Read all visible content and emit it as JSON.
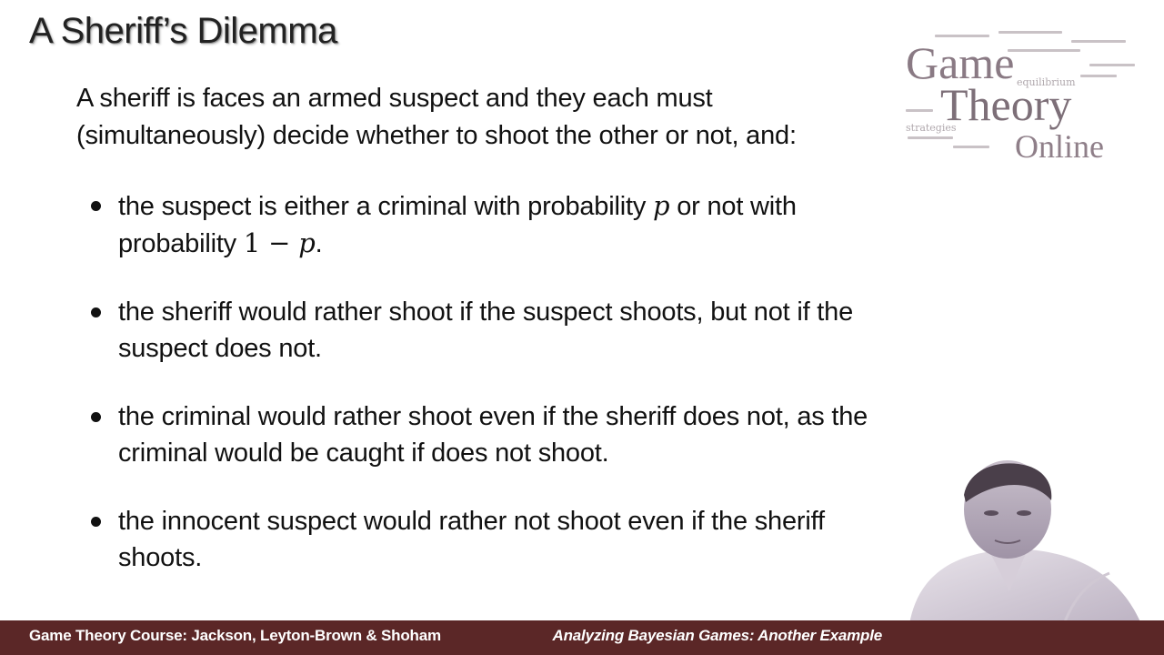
{
  "slide": {
    "title": "A Sheriff’s Dilemma",
    "intro": "A sheriff is faces an armed suspect and they each must (simultaneously) decide whether to shoot the other or not, and:",
    "bullets": [
      {
        "before": "the suspect is either a criminal with probability ",
        "math1": "p",
        "middle": " or not with probability ",
        "math2_one": "1 − ",
        "math2_p": "p",
        "after": "."
      },
      {
        "text": "the sheriff would rather shoot if the suspect shoots, but not if the suspect does not."
      },
      {
        "text": "the criminal would rather shoot even if the sheriff does not, as the criminal would be caught if does not shoot."
      },
      {
        "text": "the innocent suspect would rather not shoot even if the sheriff shoots."
      }
    ]
  },
  "logo": {
    "line1": "Game",
    "line2": "Theory",
    "line3": "Online",
    "cloud_words": [
      "equilibrium",
      "strategies"
    ]
  },
  "footer": {
    "left": "Game Theory Course: Jackson, Leyton-Brown & Shoham",
    "right": "Analyzing Bayesian Games: Another Example"
  },
  "colors": {
    "footer_bg": "#5b2727",
    "logo_text": "#7d6f78"
  }
}
